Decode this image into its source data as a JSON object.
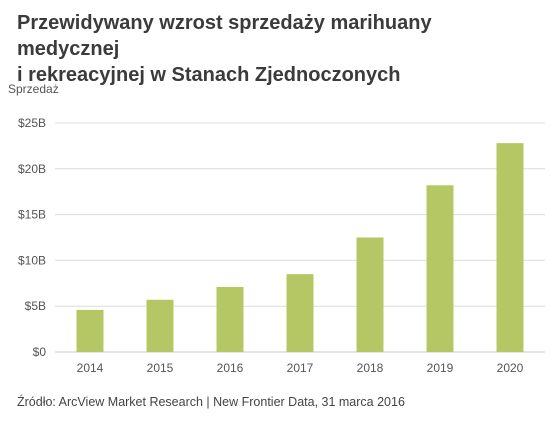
{
  "title_lines": [
    "Przewidywany wzrost sprzedaży marihuany medycznej",
    "i rekreacyjnej w Stanach Zjednoczonych"
  ],
  "source": "Źródło: ArcView Market Research | New Frontier Data, 31 marca 2016",
  "chart_data": {
    "type": "bar",
    "title": "Przewidywany wzrost sprzedaży marihuany medycznej i rekreacyjnej w Stanach Zjednoczonych",
    "ylabel": "Sprzedaż",
    "xlabel": "",
    "categories": [
      "2014",
      "2015",
      "2016",
      "2017",
      "2018",
      "2019",
      "2020"
    ],
    "values": [
      4.6,
      5.7,
      7.1,
      8.5,
      12.5,
      18.2,
      22.8
    ],
    "unit": "billion USD",
    "ylim": [
      0,
      25
    ],
    "yticks": [
      0,
      5,
      10,
      15,
      20,
      25
    ],
    "ytick_labels": [
      "$0",
      "$5B",
      "$10B",
      "$15B",
      "$20B",
      "$25B"
    ],
    "grid": true,
    "legend": "none",
    "bar_color": "#b5c765",
    "grid_color": "#dcdcdc"
  }
}
